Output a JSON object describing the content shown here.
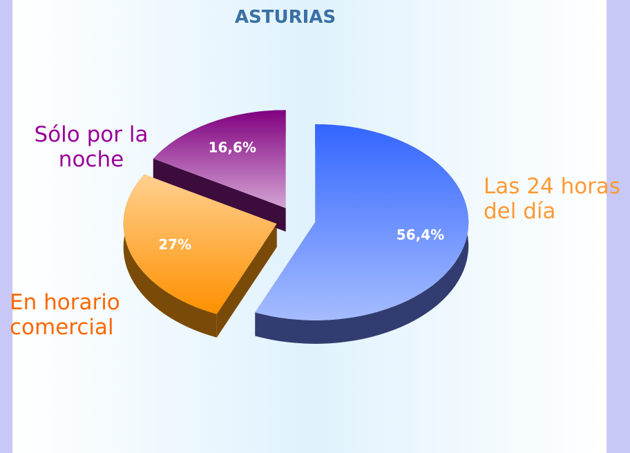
{
  "chart_data": {
    "type": "pie",
    "title": "ASTURIAS",
    "categories": [
      "Las 24 horas del día",
      "En horario comercial",
      "Sólo por la noche"
    ],
    "values": [
      56.4,
      27,
      16.6
    ],
    "value_labels": [
      "56,4%",
      "27%",
      "16,6%"
    ],
    "colors": [
      "#6f8ffc",
      "#ffb040",
      "#a04aa0"
    ],
    "label_colors": [
      "#ff9933",
      "#ff6600",
      "#990099"
    ]
  }
}
